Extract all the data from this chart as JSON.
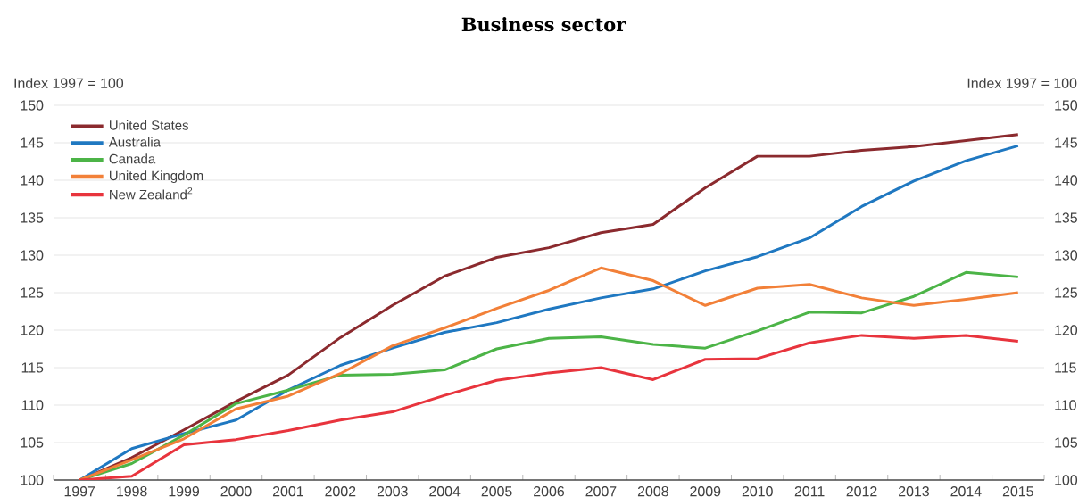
{
  "chart_data": {
    "type": "line",
    "title": "Business sector",
    "ylabel": "Index 1997 = 100",
    "y2label": "Index 1997 = 100",
    "categories": [
      "1997",
      "1998",
      "1999",
      "2000",
      "2001",
      "2002",
      "2003",
      "2004",
      "2005",
      "2006",
      "2007",
      "2008",
      "2009",
      "2010",
      "2011",
      "2012",
      "2013",
      "2014",
      "2015"
    ],
    "ylim": [
      100,
      150
    ],
    "yticks": [
      100,
      105,
      110,
      115,
      120,
      125,
      130,
      135,
      140,
      145,
      150
    ],
    "y2lim": [
      100,
      150
    ],
    "y2ticks": [
      100,
      105,
      110,
      115,
      120,
      125,
      130,
      135,
      140,
      145,
      150
    ],
    "grid": "y",
    "legend": "top left",
    "marker": "none",
    "line_style": "solid",
    "series": [
      {
        "name": "United States",
        "color": "#8b2a2e",
        "values": [
          100,
          103,
          106.7,
          110.5,
          114,
          119,
          123.3,
          127.2,
          129.7,
          131,
          133,
          134.1,
          139,
          143.2,
          143.2,
          144,
          144.5,
          145.3,
          146.1
        ]
      },
      {
        "name": "Australia",
        "color": "#1f78c1",
        "values": [
          100,
          104.2,
          106.2,
          108,
          112,
          115.3,
          117.6,
          119.7,
          121,
          122.8,
          124.3,
          125.5,
          127.9,
          129.8,
          132.3,
          136.5,
          139.9,
          142.6,
          144.6
        ]
      },
      {
        "name": "Canada",
        "color": "#4cb447",
        "values": [
          100,
          102.2,
          106,
          110.2,
          112,
          114,
          114.1,
          114.7,
          117.5,
          118.9,
          119.1,
          118.1,
          117.6,
          119.9,
          122.4,
          122.3,
          124.5,
          127.7,
          127.1
        ]
      },
      {
        "name": "United Kingdom",
        "color": "#f28038",
        "values": [
          100,
          102.7,
          105.5,
          109.5,
          111.2,
          114.2,
          117.9,
          120.3,
          122.9,
          125.3,
          128.3,
          126.6,
          123.3,
          125.6,
          126.1,
          124.3,
          123.3,
          124.1,
          125
        ]
      },
      {
        "name": "New Zealand$^{2}$",
        "color": "#e8343d",
        "values": [
          100,
          100.5,
          104.7,
          105.4,
          106.6,
          108,
          109.1,
          111.3,
          113.3,
          114.3,
          115,
          113.4,
          116.1,
          116.2,
          118.3,
          119.3,
          118.9,
          119.3,
          118.5
        ]
      }
    ]
  }
}
